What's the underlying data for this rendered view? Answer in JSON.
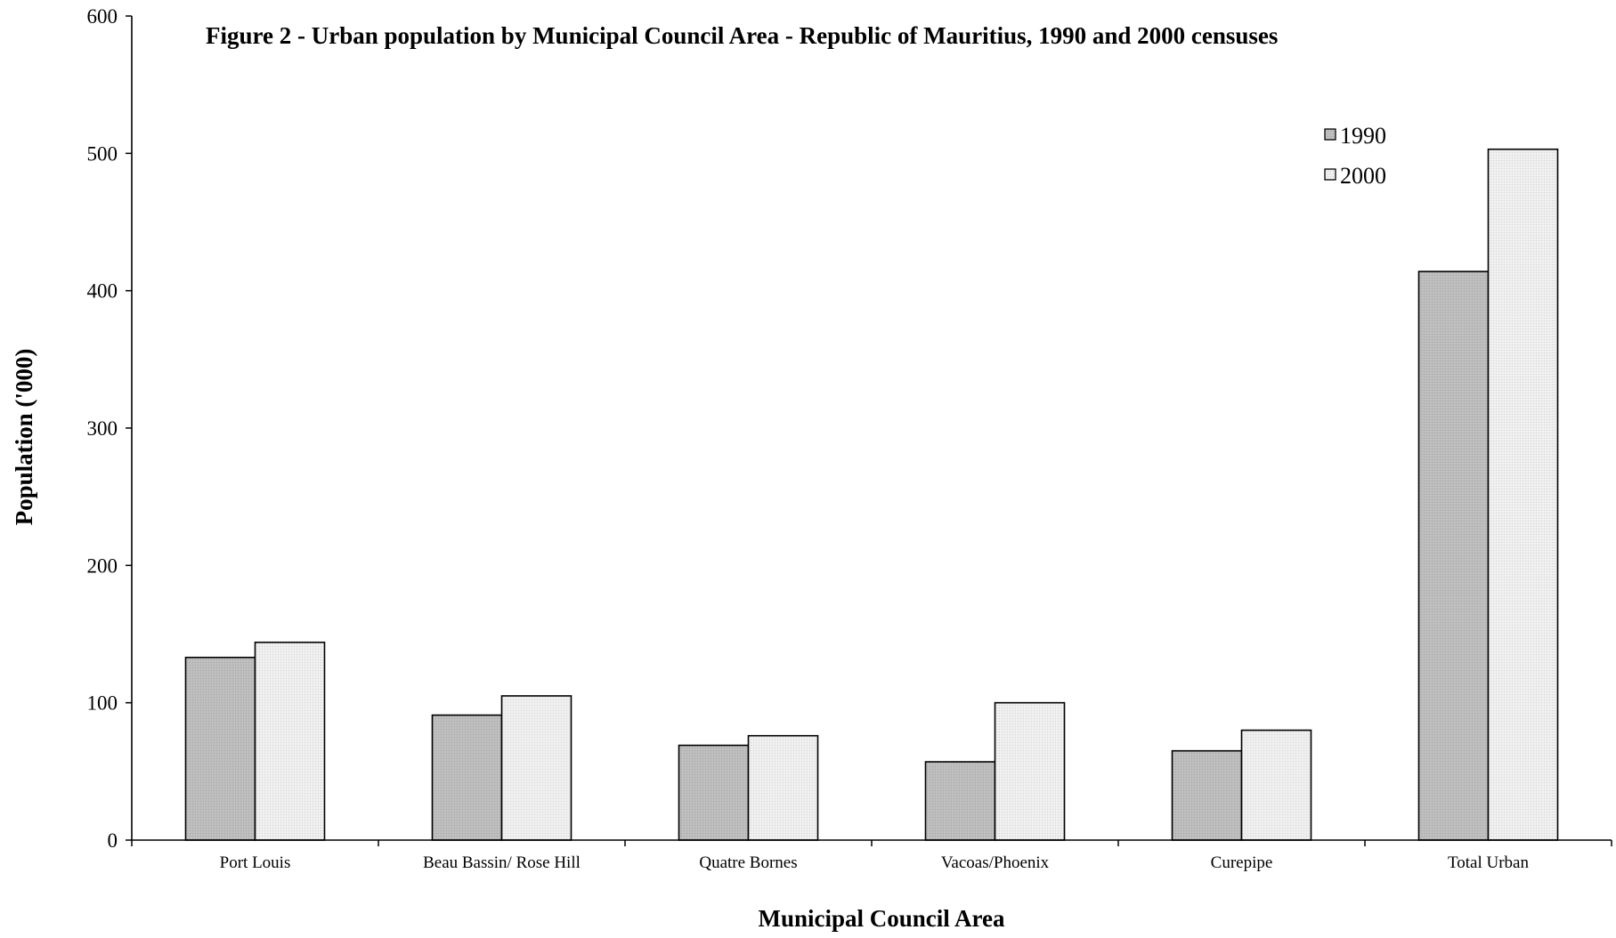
{
  "chart_data": {
    "type": "bar",
    "title": "Figure 2 - Urban population by Municipal Council Area - Republic of Mauritius, 1990 and 2000 censuses",
    "xlabel": "Municipal Council Area",
    "ylabel": "Population ('000)",
    "ylim": [
      0,
      600
    ],
    "yticks": [
      "0",
      "100",
      "200",
      "300",
      "400",
      "500",
      "600"
    ],
    "categories": [
      "Port Louis",
      "Beau Bassin/ Rose Hill",
      "Quatre Bornes",
      "Vacoas/Phoenix",
      "Curepipe",
      "Total Urban"
    ],
    "series": [
      {
        "name": "1990",
        "values": [
          133,
          91,
          69,
          57,
          65,
          414
        ],
        "color": "#c0c0c0"
      },
      {
        "name": "2000",
        "values": [
          144,
          105,
          76,
          100,
          80,
          503
        ],
        "color": "#ececec"
      }
    ],
    "grid": false,
    "legend_position": "top-right"
  }
}
